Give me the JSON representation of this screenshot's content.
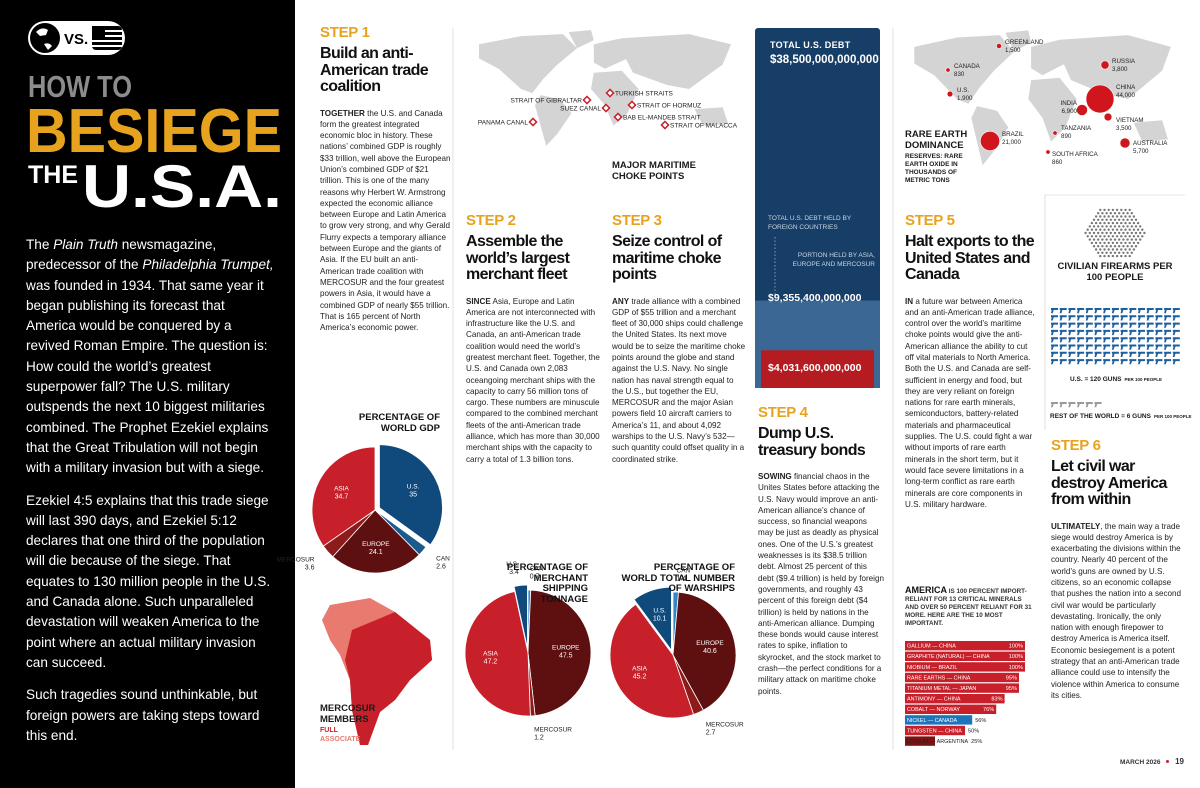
{
  "header": {
    "badge": "VS.",
    "title": {
      "line1": "HOW TO",
      "line2": "BESIEGE",
      "line3a": "THE",
      "line3b": "U.S.A."
    }
  },
  "intro": {
    "p1": [
      {
        "text": "The "
      },
      {
        "text": "Plain Truth",
        "italic": true
      },
      {
        "text": " newsmagazine, predecessor of the "
      },
      {
        "text": "Philadelphia Trumpet,",
        "italic": true
      },
      {
        "text": " was founded in 1934. That same year it began publishing its forecast that America would be conquered by a revived Roman Empire. The question is: How could the world’s greatest superpower fall? The U.S. military outspends the next 10 biggest militaries combined. The Prophet Ezekiel explains that the Great Tribulation will not begin with a military invasion but with a siege."
      }
    ],
    "p2": "Ezekiel 4:5 explains that this trade siege will last 390 days, and Ezekiel 5:12 declares that one third of the population will die because of the siege. That equates to 130 million people in the U.S. and Canada alone. Such unparalleled devastation will weaken America to the point where an actual military invasion can succeed.",
    "p3": "Such tragedies sound unthinkable, but foreign powers are taking steps toward this end."
  },
  "steps": [
    {
      "label": "STEP 1",
      "heading": "Build an anti-American trade coalition",
      "lead": "TOGETHER",
      "body": " the U.S. and Canada form the greatest integrated economic bloc in history. These nations’ combined GDP is roughly $33 trillion, well above the European Union’s combined GDP of $21 trillion. This is one of the many reasons why Herbert W. Armstrong expected the economic alliance between Europe and Latin America to grow very strong, and why Gerald Flurry expects a temporary alliance between Europe and the giants of Asia. If the EU built an anti-American trade coalition with MERCOSUR and the four greatest powers in Asia, it would have a combined GDP of nearly $55 trillion. That is 165 percent of North America’s economic power."
    },
    {
      "label": "STEP 2",
      "heading": "Assemble the world’s largest merchant fleet",
      "lead": "SINCE",
      "body": " Asia, Europe and Latin America are not interconnected with infrastructure like the U.S. and Canada, an anti-American trade coalition would need the world’s greatest merchant fleet. Together, the U.S. and Canada own 2,083 oceangoing merchant ships with the capacity to carry 56 million tons of cargo. These numbers are minuscule compared to the combined merchant fleets of the anti-American trade alliance, which has more than 30,000 merchant ships with the capacity to carry a total of 1.3 billion tons."
    },
    {
      "label": "STEP 3",
      "heading": "Seize control of maritime choke points",
      "lead": "ANY",
      "body": " trade alliance with a combined GDP of $55 trillion and a merchant fleet of 30,000 ships could challenge the United States. Its next move would be to seize the maritime choke points around the globe and stand against the U.S. Navy. No single nation has naval strength equal to the U.S., but together the EU, MERCOSUR and the major Asian powers field 10 aircraft carriers to America’s 11, and about 4,092 warships to the U.S. Navy’s 532—such quantity could offset quality in a coordinated strike."
    },
    {
      "label": "STEP 4",
      "heading": "Dump U.S. treasury bonds",
      "lead": "SOWING",
      "body": " financial chaos in the Unites States before attacking the U.S. Navy would improve an anti-American alliance’s chance of success, so financial weapons may be just as deadly as physical ones. One of the U.S.’s greatest weaknesses is its $38.5 trillion debt. Almost 25 percent of this debt ($9.4 trillion) is held by foreign governments, and roughly 43 percent of this foreign debt ($4 trillion) is held by nations in the anti-American alliance. Dumping these bonds would cause interest rates to spike, inflation to skyrocket, and the stock market to crash—the perfect conditions for a military attack on maritime choke points."
    },
    {
      "label": "STEP 5",
      "heading": "Halt exports to the United States and Canada",
      "lead": "IN",
      "body": " a future war between America and an anti-American trade alliance, control over the world’s maritime choke points would give the anti-American alliance the ability to cut off vital materials to North America. Both the U.S. and Canada are self-sufficient in energy and food, but they are very reliant on foreign nations for rare earth minerals, semiconductors, battery-related materials and pharmaceutical supplies. The U.S. could fight a war without imports of rare earth minerals in the short term, but it would face severe limitations in a long-term conflict as rare earth minerals are core components in U.S. military hardware."
    },
    {
      "label": "STEP 6",
      "heading": "Let civil war destroy America from within",
      "lead": "ULTIMATELY",
      "body": ", the main way a trade siege would destroy America is by exacerbating the divisions within the country. Nearly 40 percent of the world’s guns are owned by U.S. citizens, so an economic collapse that pushes the nation into a second civil war would be particularly devastating. Ironically, the only nation with enough firepower to destroy America is America itself. Economic besiegement is a potent strategy that an anti-American trade alliance could use to intensify the violence within America to consume its cities."
    }
  ],
  "choke_points": {
    "title": "MAJOR MARITIME CHOKE POINTS",
    "labels": [
      "STRAIT OF GIBRALTAR",
      "TURKISH STRAITS",
      "SUEZ CANAL",
      "STRAIT OF HORMUZ",
      "BAB EL-MANDEB STRAIT",
      "STRAIT OF MALACCA",
      "PANAMA CANAL"
    ]
  },
  "mercosur": {
    "title": "MERCOSUR MEMBERS",
    "legend": [
      {
        "label": "FULL",
        "color": "#c8202a"
      },
      {
        "label": "ASSOCIATE",
        "color": "#e87a70"
      }
    ]
  },
  "minerals_note": {
    "lead": "AMERICA",
    "text": " IS 100 PERCENT IMPORT-RELIANT FOR 13 CRITICAL MINERALS AND OVER 50 PERCENT RELIANT FOR 31 MORE. HERE ARE THE 10 MOST IMPORTANT."
  },
  "footer": {
    "issue": "MARCH 2026",
    "page": "19"
  },
  "chart_data": [
    {
      "type": "pie",
      "title": "PERCENTAGE OF WORLD GDP",
      "categories": [
        "U.S.",
        "CAN",
        "EUROPE",
        "MERCOSUR",
        "ASIA"
      ],
      "values": [
        35,
        2.6,
        24.1,
        3.6,
        34.7
      ],
      "colors": [
        "#104a7c",
        "#1c5a8e",
        "#5e1010",
        "#8e1b1b",
        "#c8202a"
      ]
    },
    {
      "type": "pie",
      "title": "PERCENTAGE OF MERCHANT SHIPPING TONNAGE",
      "categories": [
        "U.S.",
        "CAN",
        "EUROPE",
        "MERCOSUR",
        "ASIA"
      ],
      "values": [
        3.4,
        0.7,
        47.5,
        1.2,
        47.2
      ],
      "colors": [
        "#104a7c",
        "#2f86c8",
        "#5e1010",
        "#8e1b1b",
        "#c8202a"
      ]
    },
    {
      "type": "pie",
      "title": "PERCENTAGE OF WORLD TOTAL NUMBER OF WARSHIPS",
      "categories": [
        "U.S.",
        "CAN",
        "EUROPE",
        "MERCOSUR",
        "ASIA"
      ],
      "values": [
        10.1,
        1.4,
        40.6,
        2.7,
        45.2
      ],
      "colors": [
        "#104a7c",
        "#2f86c8",
        "#5e1010",
        "#8e1b1b",
        "#c8202a"
      ]
    },
    {
      "type": "nested_bar",
      "categories": [
        "TOTAL U.S. DEBT",
        "TOTAL U.S. DEBT HELD BY FOREIGN COUNTRIES",
        "PORTION HELD BY ASIA, EUROPE AND MERCOSUR"
      ],
      "values": [
        38500000000000,
        9355400000000,
        4031600000000
      ],
      "value_labels": [
        "$38,500,000,000,000",
        "$9,355,400,000,000",
        "$4,031,600,000,000"
      ],
      "colors": [
        "#173e66",
        "#3a6794",
        "#b51c22"
      ]
    },
    {
      "type": "bubble_map",
      "title": "RARE EARTH DOMINANCE",
      "subtitle": "RESERVES: RARE EARTH OXIDE IN THOUSANDS OF METRIC TONS",
      "categories": [
        "GREENLAND",
        "CANADA",
        "U.S.",
        "BRAZIL",
        "RUSSIA",
        "CHINA",
        "INDIA",
        "VIETNAM",
        "TANZANIA",
        "SOUTH AFRICA",
        "AUSTRALIA"
      ],
      "values": [
        1500,
        830,
        1900,
        21000,
        3800,
        44000,
        6900,
        3500,
        890,
        860,
        5700
      ],
      "value_labels": [
        "1,500",
        "830",
        "1,900",
        "21,000",
        "3,800",
        "44,000",
        "6,900",
        "3,500",
        "890",
        "860",
        "5,700"
      ],
      "color": "#d0151c"
    },
    {
      "type": "hbar",
      "categories": [
        "GALLIUM — CHINA",
        "GRAPHITE (NATURAL) — CHINA",
        "NIOBIUM — BRAZIL",
        "RARE EARTHS — CHINA",
        "TITANIUM METAL — JAPAN",
        "ANTIMONY — CHINA",
        "COBALT — NORWAY",
        "NICKEL — CANADA",
        "TUNGSTEN — CHINA",
        "LITHIUM — ARGENTINA"
      ],
      "values": [
        100,
        100,
        100,
        95,
        95,
        83,
        76,
        56,
        50,
        25
      ],
      "value_labels": [
        "100%",
        "100%",
        "100%",
        "95%",
        "95%",
        "83%",
        "76%",
        "56%",
        "50%",
        "25%"
      ],
      "xlim": [
        0,
        100
      ],
      "colors": [
        "#c8202a",
        "#c8202a",
        "#c8202a",
        "#c8202a",
        "#c8202a",
        "#c8202a",
        "#c8202a",
        "#1c75bb",
        "#c8202a",
        "#7a1414"
      ]
    },
    {
      "type": "pictogram",
      "title": "CIVILIAN FIREARMS PER 100 PEOPLE",
      "values": [
        120,
        6
      ],
      "value_labels": [
        "U.S. = 120 GUNS",
        "REST OF THE WORLD = 6 GUNS"
      ],
      "unit_labels": [
        "PER 100 PEOPLE",
        "PER 100 PEOPLE"
      ],
      "colors": [
        "#1e5f9e",
        "#9a9a9a"
      ]
    }
  ]
}
